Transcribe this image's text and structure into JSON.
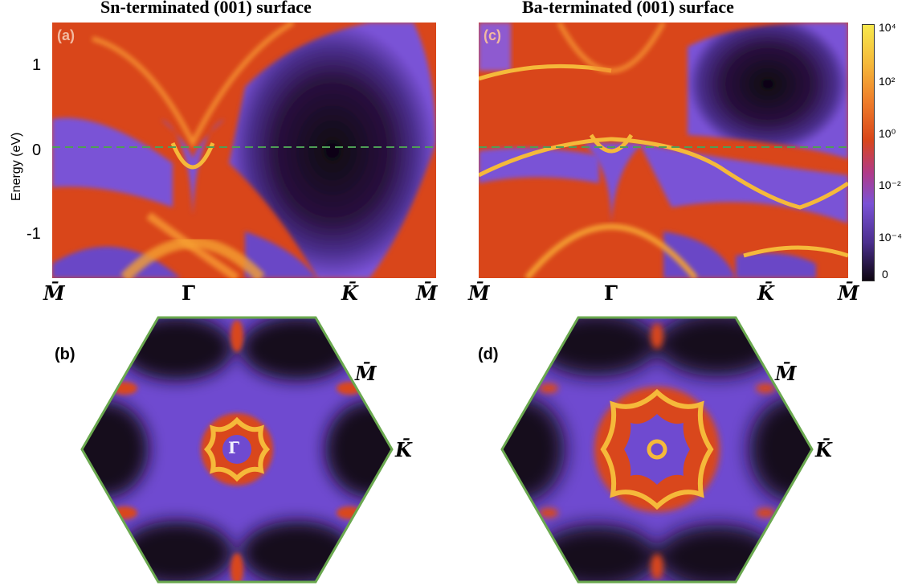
{
  "figure": {
    "panel_left": {
      "title": "Sn-terminated (001) surface",
      "label": "(a)",
      "kpoints": [
        "M̄",
        "Γ̄",
        "K̄",
        "M̄"
      ]
    },
    "panel_right": {
      "title": "Ba-terminated (001) surface",
      "label": "(c)",
      "kpoints": [
        "M̄",
        "Γ̄",
        "K̄",
        "M̄"
      ]
    },
    "y_axis": {
      "label": "Energy (eV)",
      "ticks": [
        "1",
        "0",
        "-1"
      ]
    },
    "colorbar": {
      "ticks": [
        "10⁴",
        "10²",
        "10⁰",
        "10⁻²",
        "10⁻⁴",
        "0"
      ]
    },
    "hex_left": {
      "label": "(b)",
      "center_label": "Γ̄",
      "m_label": "M̄",
      "k_label": "K̄"
    },
    "hex_right": {
      "label": "(d)",
      "m_label": "M̄",
      "k_label": "K̄"
    }
  },
  "colors": {
    "orange": "#e8561c",
    "yellow": "#f5b93a",
    "purple": "#7a52d6",
    "dark": "#170a1e",
    "hex_border": "#6aa84f"
  }
}
